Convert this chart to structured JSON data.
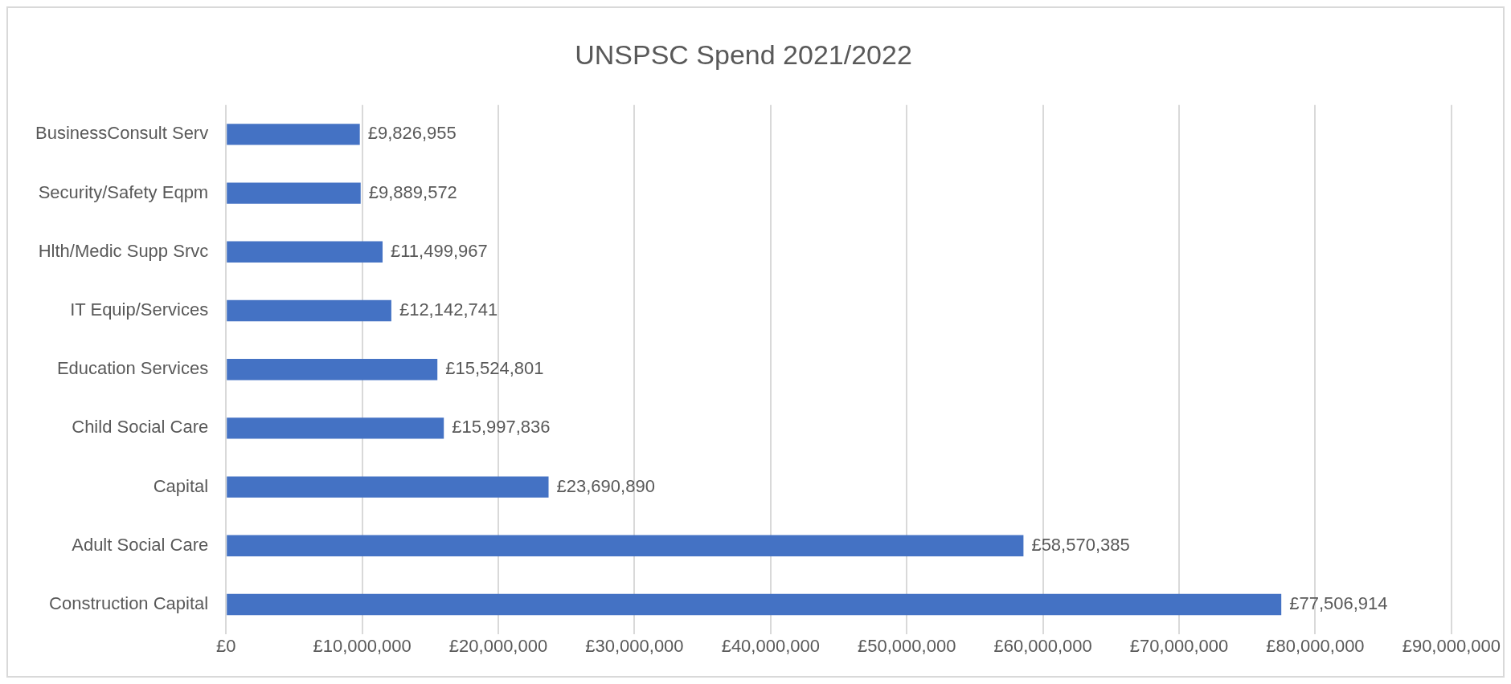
{
  "chart_data": {
    "type": "bar",
    "orientation": "horizontal",
    "title": "UNSPSC Spend 2021/2022",
    "categories": [
      "BusinessConsult Serv",
      "Security/Safety Eqpm",
      "Hlth/Medic Supp Srvc",
      "IT Equip/Services",
      "Education Services",
      "Child Social Care",
      "Capital",
      "Adult Social Care",
      "Construction Capital"
    ],
    "values": [
      9826955,
      9889572,
      11499967,
      12142741,
      15524801,
      15997836,
      23690890,
      58570385,
      77506914
    ],
    "value_labels": [
      "£9,826,955",
      "£9,889,572",
      "£11,499,967",
      "£12,142,741",
      "£15,524,801",
      "£15,997,836",
      "£23,690,890",
      "£58,570,385",
      "£77,506,914"
    ],
    "color": "#4472c4",
    "xlim": [
      0,
      90000000
    ],
    "xticks": [
      {
        "value": 0,
        "label": "£0"
      },
      {
        "value": 10000000,
        "label": "£10,000,000"
      },
      {
        "value": 20000000,
        "label": "£20,000,000"
      },
      {
        "value": 30000000,
        "label": "£30,000,000"
      },
      {
        "value": 40000000,
        "label": "£40,000,000"
      },
      {
        "value": 50000000,
        "label": "£50,000,000"
      },
      {
        "value": 60000000,
        "label": "£60,000,000"
      },
      {
        "value": 70000000,
        "label": "£70,000,000"
      },
      {
        "value": 80000000,
        "label": "£80,000,000"
      },
      {
        "value": 90000000,
        "label": "£90,000,000"
      }
    ],
    "grid": "x",
    "legend": false
  }
}
